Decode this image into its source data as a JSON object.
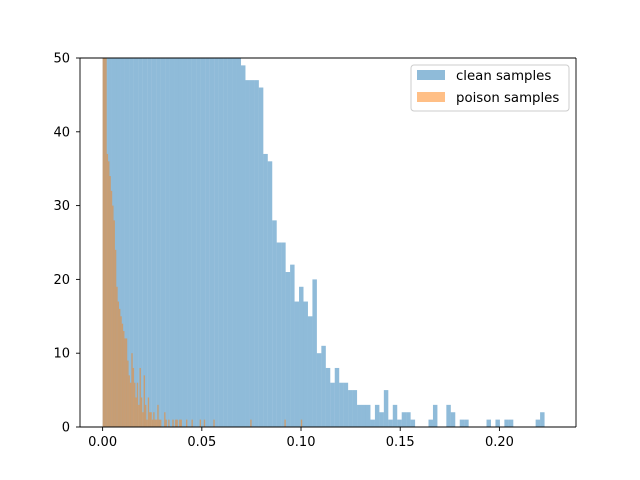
{
  "chart_data": {
    "type": "bar",
    "title": "",
    "xlabel": "",
    "ylabel": "",
    "xlim": [
      -0.0114,
      0.2386
    ],
    "ylim": [
      0,
      50
    ],
    "xticks": [
      0.0,
      0.05,
      0.1,
      0.15,
      0.2
    ],
    "xtick_labels": [
      "0.00",
      "0.05",
      "0.10",
      "0.15",
      "0.20"
    ],
    "yticks": [
      0,
      10,
      20,
      30,
      40,
      50
    ],
    "ytick_labels": [
      "0",
      "10",
      "20",
      "30",
      "40",
      "50"
    ],
    "grid": false,
    "legend_position": "top-right",
    "series": [
      {
        "name": "clean samples",
        "color": "#1f77b4",
        "alpha": 0.5,
        "bin_start": 0.0,
        "bin_width": 0.00225,
        "counts": [
          50,
          50,
          50,
          50,
          50,
          50,
          50,
          50,
          50,
          50,
          50,
          50,
          50,
          50,
          50,
          50,
          50,
          50,
          50,
          50,
          50,
          50,
          50,
          50,
          50,
          50,
          50,
          50,
          50,
          50,
          50,
          49,
          47,
          47,
          47,
          46,
          37,
          36,
          28,
          25,
          25,
          21,
          22,
          17,
          19,
          17,
          15,
          20,
          10,
          11,
          8,
          6,
          8,
          6,
          6,
          5,
          5,
          3,
          3,
          3,
          1,
          3,
          2,
          5,
          1,
          3,
          1,
          2,
          2,
          1,
          0,
          0,
          0,
          1,
          3,
          0,
          0,
          3,
          2,
          0,
          1,
          1,
          0,
          0,
          0,
          0,
          1,
          0,
          1,
          0,
          1,
          1,
          0,
          0,
          0,
          0,
          0,
          1,
          2
        ]
      },
      {
        "name": "poison samples",
        "color": "#ff7f0e",
        "alpha": 0.5,
        "bin_start": 0.0,
        "bin_width": 0.000689,
        "counts": [
          50,
          50,
          50,
          37,
          36,
          34,
          32,
          30,
          28,
          24,
          19,
          17,
          16,
          15,
          14,
          13,
          12,
          12,
          9,
          7,
          6,
          10,
          8,
          6,
          4,
          6,
          3,
          8,
          4,
          2,
          7,
          3,
          1,
          4,
          2,
          2,
          1,
          2,
          1,
          1,
          3,
          1,
          1,
          0,
          0,
          2,
          1,
          0,
          1,
          0,
          0,
          1,
          0,
          1,
          1,
          0,
          1,
          1,
          0,
          0,
          0,
          1,
          0,
          0,
          0,
          1,
          0,
          0,
          0,
          0,
          0,
          1,
          0,
          0,
          1,
          0,
          0,
          0,
          0,
          0,
          0,
          1,
          0,
          0,
          0,
          0,
          0,
          0,
          0,
          0,
          0,
          0,
          0,
          0,
          0,
          0,
          0,
          0,
          0,
          0,
          0,
          0,
          0,
          0,
          0,
          0,
          0,
          0,
          1,
          0,
          0,
          0,
          0,
          0,
          0,
          0,
          0,
          0,
          0,
          0,
          0,
          0,
          0,
          0,
          0,
          0,
          0,
          0,
          0,
          0,
          0,
          0,
          0,
          1,
          0,
          0,
          0,
          0,
          0,
          0,
          0,
          0,
          0,
          0,
          0,
          1
        ]
      }
    ]
  }
}
